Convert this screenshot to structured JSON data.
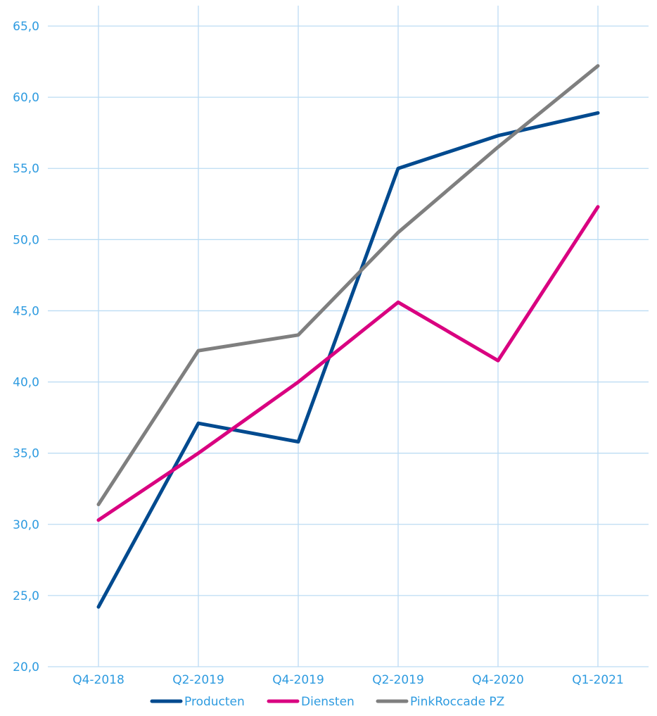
{
  "chart_data": {
    "type": "line",
    "categories": [
      "Q4-2018",
      "Q2-2019",
      "Q4-2019",
      "Q2-2019",
      "Q4-2020",
      "Q1-2021"
    ],
    "y_ticks": [
      "20,0",
      "25,0",
      "30,0",
      "35,0",
      "40,0",
      "45,0",
      "50,0",
      "55,0",
      "60,0",
      "65,0"
    ],
    "ylim": [
      20,
      65
    ],
    "grid": true,
    "legend_position": "bottom",
    "series": [
      {
        "name": "Producten",
        "color": "#004a8f",
        "values": [
          24.2,
          37.1,
          35.8,
          55.0,
          57.3,
          58.9
        ]
      },
      {
        "name": "Diensten",
        "color": "#d90080",
        "values": [
          30.3,
          35.0,
          40.0,
          45.6,
          41.5,
          52.3
        ]
      },
      {
        "name": "PinkRoccade PZ",
        "color": "#7f7f7f",
        "values": [
          31.4,
          42.2,
          43.3,
          50.5,
          56.5,
          62.2
        ]
      }
    ]
  }
}
